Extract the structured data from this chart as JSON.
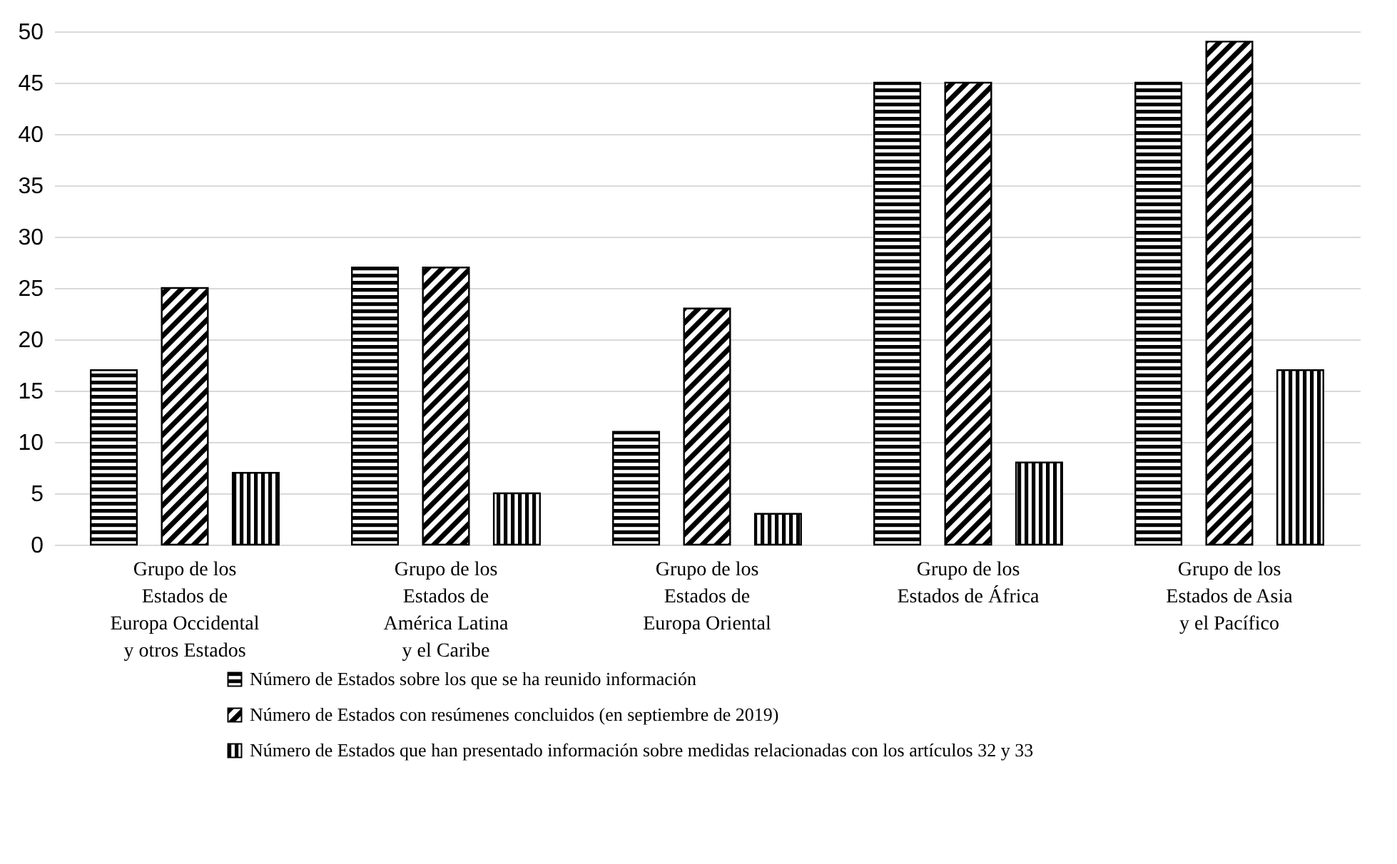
{
  "chart_data": {
    "type": "bar",
    "categories": [
      "Grupo de los\nEstados de\nEuropa Occidental\ny otros Estados",
      "Grupo de los\nEstados de\nAmérica Latina\ny el Caribe",
      "Grupo de los\nEstados de\nEuropa Oriental",
      "Grupo de los\nEstados de África",
      "Grupo de los\nEstados de Asia\ny el Pacífico"
    ],
    "series": [
      {
        "name": "Número de Estados sobre los que se ha reunido información",
        "color": "#000000",
        "values": [
          17,
          27,
          11,
          45,
          45
        ]
      },
      {
        "name": "Número de Estados con resúmenes concluidos (en septiembre de 2019)",
        "color": "#000000",
        "values": [
          25,
          27,
          23,
          45,
          49
        ]
      },
      {
        "name": "Número de Estados que han presentado información sobre medidas relacionadas con los artículos 32 y 33",
        "color": "#000000",
        "values": [
          7,
          5,
          3,
          8,
          17
        ]
      }
    ],
    "ylim": [
      0,
      50
    ],
    "yticks": [
      0,
      5,
      10,
      15,
      20,
      25,
      30,
      35,
      40,
      45,
      50
    ],
    "grid": "y",
    "legend": "bottom"
  }
}
